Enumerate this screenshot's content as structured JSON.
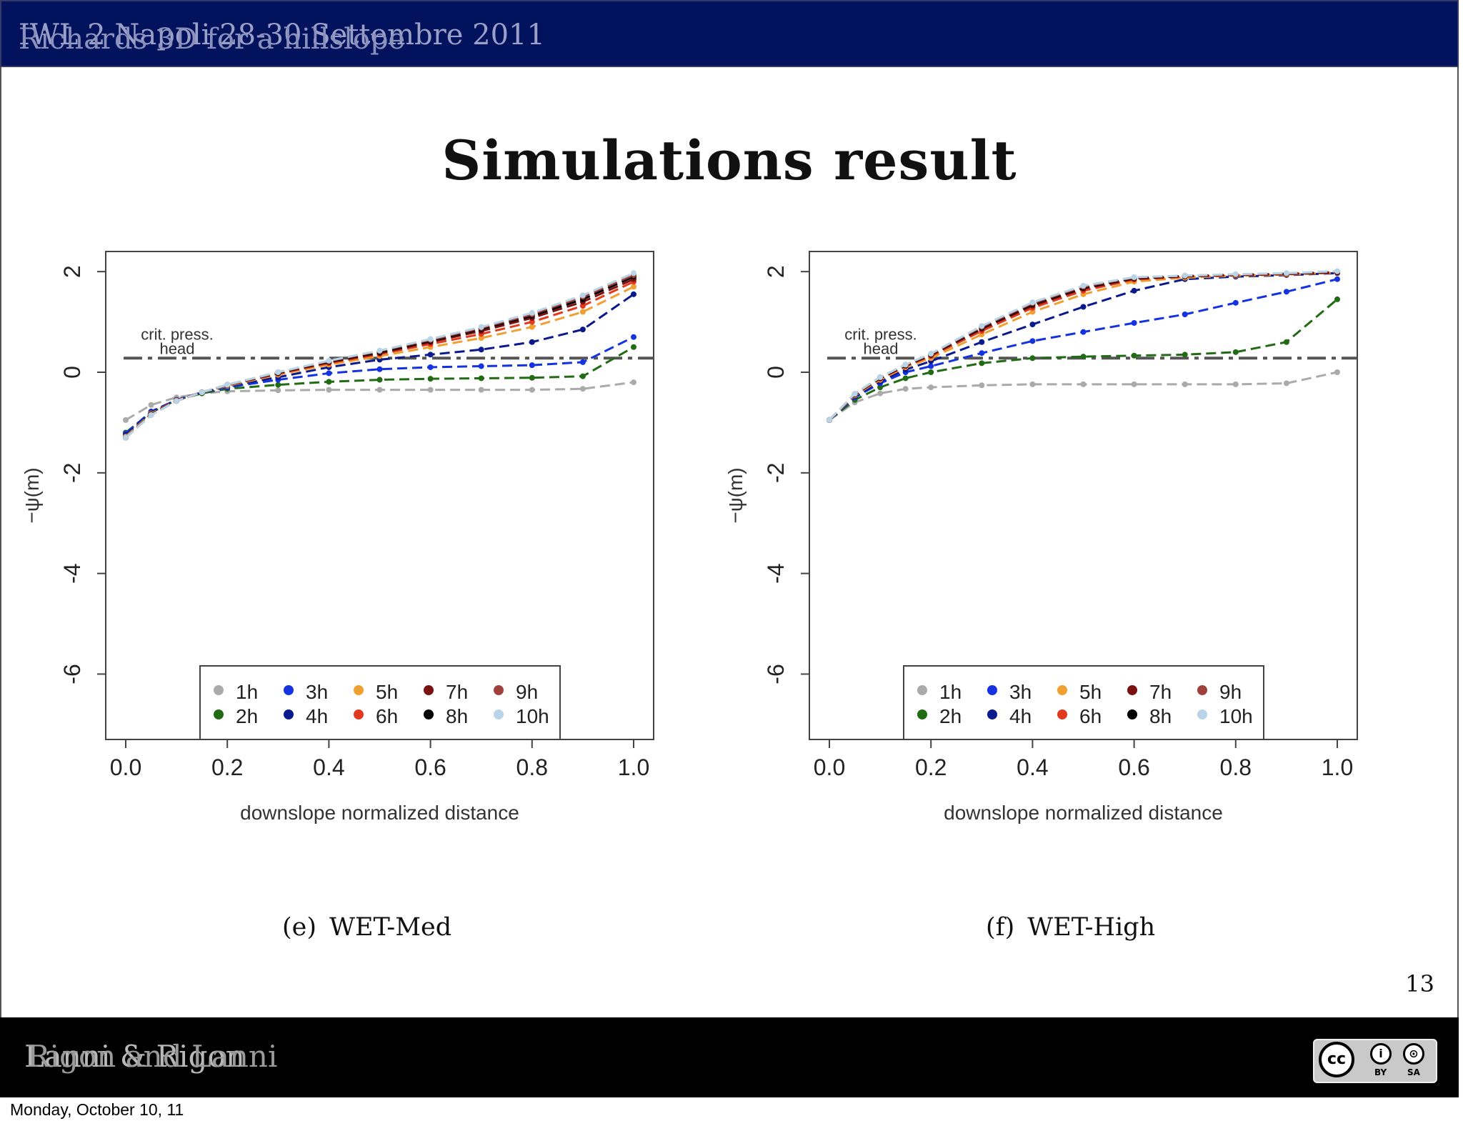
{
  "header": {
    "line1": "IWL 2 Napoli 28-30 Settembre 2011",
    "line2": "Richards 3D for a hillslope"
  },
  "slide_title": "Simulations result",
  "page_number": "13",
  "footer": {
    "line1": "Lanni & Rigon",
    "line2": "Rigon and Lanni"
  },
  "license": {
    "main": "cc",
    "by_label": "BY",
    "sa_label": "SA",
    "by_icon": "i",
    "sa_icon": "⊙"
  },
  "date_stamp": "Monday, October 10, 11",
  "colors": {
    "header_bg": "#03125c",
    "1h": "#aaaaaa",
    "2h": "#226b15",
    "3h": "#1432e0",
    "4h": "#0a1a8c",
    "5h": "#f0a030",
    "6h": "#e23a1e",
    "7h": "#7a1010",
    "8h": "#000000",
    "9h": "#a0403a",
    "10h": "#b8d4e6"
  },
  "chart_data": [
    {
      "type": "line",
      "panel_label": "(e)",
      "caption": "WET-Med",
      "xlabel": "downslope normalized distance",
      "ylabel": "−ψ(m)",
      "xlim": [
        0.0,
        1.0
      ],
      "ylim": [
        -7.3,
        2.4
      ],
      "xticks": [
        "0.0",
        "0.2",
        "0.4",
        "0.6",
        "0.8",
        "1.0"
      ],
      "yticks": [
        "2",
        "0",
        "-2",
        "-4",
        "-6"
      ],
      "critical_pressure_head": {
        "value": 0.28,
        "label_line1": "crit. press.",
        "label_line2": "head"
      },
      "x": [
        0.0,
        0.05,
        0.1,
        0.15,
        0.2,
        0.3,
        0.4,
        0.5,
        0.6,
        0.7,
        0.8,
        0.9,
        1.0
      ],
      "series": [
        {
          "name": "1h",
          "values": [
            -0.95,
            -0.65,
            -0.5,
            -0.42,
            -0.38,
            -0.36,
            -0.35,
            -0.35,
            -0.35,
            -0.35,
            -0.35,
            -0.33,
            -0.2
          ]
        },
        {
          "name": "2h",
          "values": [
            -1.2,
            -0.8,
            -0.55,
            -0.42,
            -0.33,
            -0.25,
            -0.19,
            -0.15,
            -0.13,
            -0.12,
            -0.11,
            -0.08,
            0.5
          ]
        },
        {
          "name": "3h",
          "values": [
            -1.22,
            -0.78,
            -0.55,
            -0.4,
            -0.3,
            -0.15,
            -0.02,
            0.06,
            0.1,
            0.12,
            0.14,
            0.2,
            0.7
          ]
        },
        {
          "name": "4h",
          "values": [
            -1.25,
            -0.8,
            -0.55,
            -0.4,
            -0.28,
            -0.1,
            0.1,
            0.25,
            0.35,
            0.45,
            0.6,
            0.85,
            1.55
          ]
        },
        {
          "name": "5h",
          "values": [
            -1.28,
            -0.82,
            -0.56,
            -0.4,
            -0.27,
            -0.05,
            0.15,
            0.32,
            0.5,
            0.68,
            0.9,
            1.2,
            1.7
          ]
        },
        {
          "name": "6h",
          "values": [
            -1.3,
            -0.83,
            -0.56,
            -0.4,
            -0.26,
            -0.03,
            0.18,
            0.36,
            0.56,
            0.76,
            1.0,
            1.32,
            1.8
          ]
        },
        {
          "name": "7h",
          "values": [
            -1.3,
            -0.84,
            -0.57,
            -0.4,
            -0.26,
            -0.02,
            0.2,
            0.38,
            0.6,
            0.82,
            1.08,
            1.4,
            1.85
          ]
        },
        {
          "name": "8h",
          "values": [
            -1.3,
            -0.84,
            -0.57,
            -0.4,
            -0.25,
            -0.01,
            0.21,
            0.4,
            0.62,
            0.86,
            1.12,
            1.45,
            1.9
          ]
        },
        {
          "name": "9h",
          "values": [
            -1.3,
            -0.85,
            -0.57,
            -0.4,
            -0.25,
            0.0,
            0.22,
            0.42,
            0.64,
            0.88,
            1.15,
            1.5,
            1.93
          ]
        },
        {
          "name": "10h",
          "values": [
            -1.3,
            -0.85,
            -0.57,
            -0.4,
            -0.25,
            0.0,
            0.23,
            0.43,
            0.66,
            0.9,
            1.18,
            1.53,
            1.97
          ]
        }
      ]
    },
    {
      "type": "line",
      "panel_label": "(f)",
      "caption": "WET-High",
      "xlabel": "downslope normalized distance",
      "ylabel": "−ψ(m)",
      "xlim": [
        0.0,
        1.0
      ],
      "ylim": [
        -7.3,
        2.4
      ],
      "xticks": [
        "0.0",
        "0.2",
        "0.4",
        "0.6",
        "0.8",
        "1.0"
      ],
      "yticks": [
        "2",
        "0",
        "-2",
        "-4",
        "-6"
      ],
      "critical_pressure_head": {
        "value": 0.28,
        "label_line1": "crit. press.",
        "label_line2": "head"
      },
      "x": [
        0.0,
        0.05,
        0.1,
        0.15,
        0.2,
        0.3,
        0.4,
        0.5,
        0.6,
        0.7,
        0.8,
        0.9,
        1.0
      ],
      "series": [
        {
          "name": "1h",
          "values": [
            -0.95,
            -0.6,
            -0.42,
            -0.33,
            -0.3,
            -0.26,
            -0.24,
            -0.24,
            -0.24,
            -0.24,
            -0.24,
            -0.22,
            0.0
          ]
        },
        {
          "name": "2h",
          "values": [
            -0.95,
            -0.55,
            -0.3,
            -0.12,
            0.0,
            0.18,
            0.28,
            0.31,
            0.33,
            0.35,
            0.4,
            0.6,
            1.45
          ]
        },
        {
          "name": "3h",
          "values": [
            -0.95,
            -0.5,
            -0.22,
            0.0,
            0.12,
            0.38,
            0.62,
            0.8,
            0.98,
            1.15,
            1.38,
            1.6,
            1.85
          ]
        },
        {
          "name": "4h",
          "values": [
            -0.95,
            -0.48,
            -0.18,
            0.05,
            0.22,
            0.6,
            0.95,
            1.3,
            1.62,
            1.85,
            1.9,
            1.93,
            1.97
          ]
        },
        {
          "name": "5h",
          "values": [
            -0.95,
            -0.46,
            -0.15,
            0.1,
            0.28,
            0.75,
            1.2,
            1.55,
            1.8,
            1.88,
            1.92,
            1.94,
            1.98
          ]
        },
        {
          "name": "6h",
          "values": [
            -0.95,
            -0.45,
            -0.13,
            0.12,
            0.32,
            0.82,
            1.28,
            1.62,
            1.84,
            1.9,
            1.93,
            1.95,
            1.98
          ]
        },
        {
          "name": "7h",
          "values": [
            -0.95,
            -0.44,
            -0.12,
            0.13,
            0.34,
            0.86,
            1.32,
            1.66,
            1.86,
            1.91,
            1.93,
            1.95,
            1.99
          ]
        },
        {
          "name": "8h",
          "values": [
            -0.95,
            -0.44,
            -0.11,
            0.14,
            0.35,
            0.88,
            1.35,
            1.68,
            1.87,
            1.91,
            1.94,
            1.96,
            1.99
          ]
        },
        {
          "name": "9h",
          "values": [
            -0.95,
            -0.43,
            -0.1,
            0.15,
            0.36,
            0.9,
            1.37,
            1.7,
            1.88,
            1.92,
            1.94,
            1.96,
            2.0
          ]
        },
        {
          "name": "10h",
          "values": [
            -0.95,
            -0.43,
            -0.1,
            0.15,
            0.37,
            0.92,
            1.39,
            1.72,
            1.89,
            1.92,
            1.95,
            1.97,
            2.01
          ]
        }
      ]
    }
  ]
}
